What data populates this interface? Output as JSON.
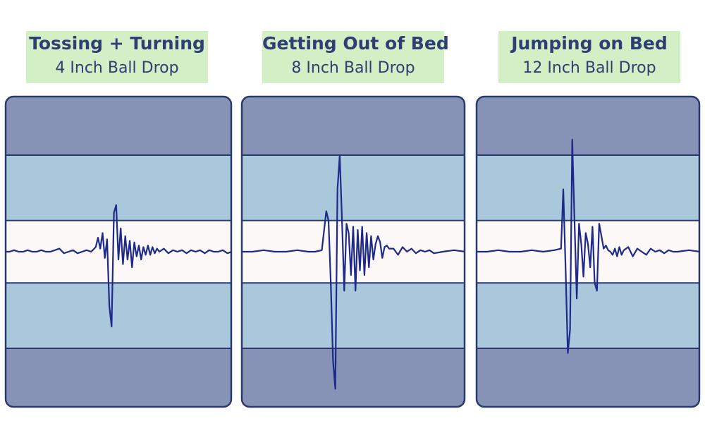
{
  "colors": {
    "outer_band": "#8692b6",
    "middle_band": "#a9c8dc",
    "center_band": "#fcf8f8",
    "line": "#1e2a88",
    "border": "#2b3a6d",
    "label_bg": "#d3efc6",
    "label_text": "#2d3f73"
  },
  "chart_data": [
    {
      "type": "line",
      "title": "Tossing + Turning",
      "subtitle": "4 Inch Ball Drop",
      "ylim": [
        -1,
        1
      ],
      "bands": [
        1,
        0.62,
        0.2,
        -0.2,
        -0.62,
        -1
      ],
      "x": [
        0,
        2,
        4,
        6,
        8,
        10,
        12,
        14,
        16,
        18,
        20,
        22,
        24,
        26,
        28,
        30,
        32,
        34,
        36,
        38,
        40,
        41,
        42,
        43,
        44,
        45,
        46,
        47,
        48,
        49,
        50,
        51,
        52,
        53,
        54,
        55,
        56,
        57,
        58,
        59,
        60,
        61,
        62,
        63,
        64,
        65,
        66,
        67,
        68,
        70,
        72,
        74,
        76,
        78,
        80,
        82,
        84,
        86,
        88,
        90,
        92,
        94,
        96,
        98,
        100
      ],
      "y": [
        0,
        0,
        0.01,
        0,
        0,
        0.01,
        0,
        0,
        0.01,
        0,
        0,
        0.01,
        0.02,
        -0.01,
        0,
        0.01,
        -0.01,
        0,
        0.01,
        0,
        0.03,
        0.09,
        0.02,
        0.12,
        -0.04,
        0.08,
        -0.35,
        -0.48,
        0.25,
        0.3,
        -0.05,
        0.15,
        -0.08,
        0.1,
        -0.05,
        0.07,
        -0.1,
        0.06,
        -0.03,
        0.04,
        -0.05,
        0.03,
        -0.02,
        0.04,
        -0.02,
        0.03,
        -0.01,
        0.02,
        0,
        0.02,
        -0.01,
        0.01,
        0,
        0.01,
        -0.01,
        0.01,
        0,
        0.01,
        -0.01,
        0.01,
        0,
        0,
        0.01,
        -0.01,
        0
      ]
    },
    {
      "type": "line",
      "title": "Getting Out of Bed",
      "subtitle": "8 Inch Ball Drop",
      "ylim": [
        -1,
        1
      ],
      "bands": [
        1,
        0.62,
        0.2,
        -0.2,
        -0.62,
        -1
      ],
      "x": [
        0,
        5,
        10,
        15,
        20,
        25,
        30,
        33,
        36,
        38,
        39,
        40,
        41,
        42,
        43,
        44,
        45,
        46,
        47,
        48,
        49,
        50,
        51,
        52,
        53,
        54,
        55,
        56,
        57,
        58,
        59,
        60,
        61,
        62,
        63,
        64,
        65,
        66,
        68,
        70,
        72,
        74,
        76,
        78,
        80,
        82,
        84,
        86,
        90,
        95,
        100
      ],
      "y": [
        0,
        0,
        0.01,
        0,
        0,
        0.01,
        0,
        0,
        0.01,
        0.26,
        0.2,
        -0.2,
        -0.7,
        -0.88,
        0.4,
        0.62,
        0.2,
        -0.25,
        0.18,
        0.12,
        -0.15,
        0.16,
        -0.25,
        0.14,
        -0.12,
        0.16,
        -0.15,
        0.12,
        -0.1,
        0.1,
        -0.05,
        0.05,
        0.1,
        0.06,
        -0.04,
        0.03,
        0.04,
        0.02,
        0.02,
        -0.02,
        0.03,
        0,
        0.02,
        -0.01,
        0.01,
        0,
        0.01,
        -0.01,
        0,
        0.01,
        0
      ]
    },
    {
      "type": "line",
      "title": "Jumping on Bed",
      "subtitle": "12 Inch Ball Drop",
      "ylim": [
        -1,
        1
      ],
      "bands": [
        1,
        0.62,
        0.2,
        -0.2,
        -0.62,
        -1
      ],
      "x": [
        0,
        5,
        10,
        15,
        20,
        25,
        30,
        35,
        38,
        39,
        40,
        41,
        42,
        43,
        44,
        45,
        46,
        47,
        48,
        49,
        50,
        51,
        52,
        53,
        54,
        55,
        56,
        57,
        58,
        59,
        60,
        61,
        62,
        63,
        64,
        65,
        66,
        68,
        70,
        72,
        74,
        76,
        78,
        80,
        82,
        84,
        86,
        88,
        90,
        95,
        100
      ],
      "y": [
        0,
        0,
        0.01,
        0,
        0,
        0.01,
        0,
        0.01,
        0.02,
        0.4,
        -0.1,
        -0.65,
        -0.5,
        0.72,
        0.2,
        -0.3,
        0.18,
        0.05,
        -0.16,
        0.12,
        0.05,
        -0.1,
        0.16,
        -0.2,
        -0.25,
        0.18,
        0.1,
        0.02,
        0.04,
        0.01,
        0,
        -0.02,
        0.02,
        -0.03,
        0.03,
        -0.02,
        0.01,
        0.03,
        -0.03,
        0.02,
        0,
        -0.02,
        0.02,
        0,
        0.01,
        -0.01,
        0.01,
        0,
        0,
        0.01,
        0
      ]
    }
  ]
}
